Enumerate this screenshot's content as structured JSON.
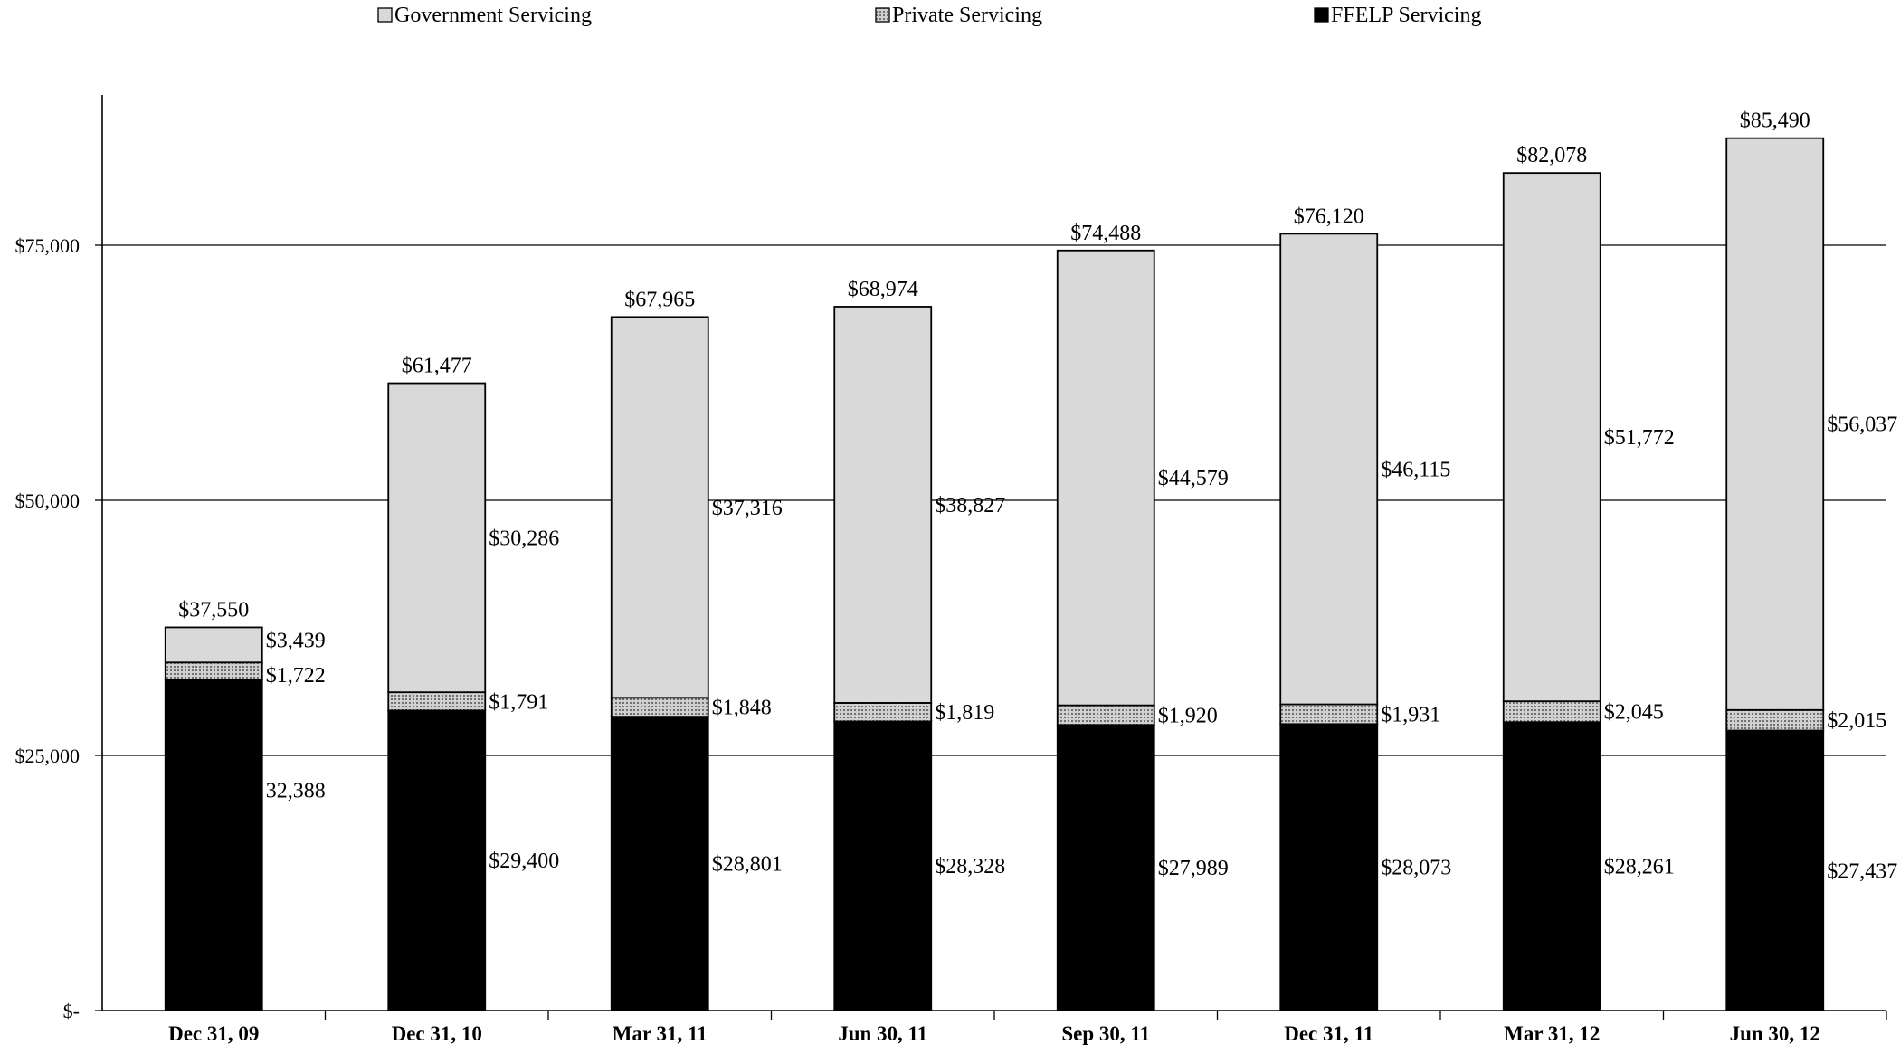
{
  "chart_data": {
    "type": "bar",
    "stacked": true,
    "title": "",
    "xlabel": "",
    "ylabel": "",
    "ylim": [
      0,
      85490
    ],
    "y_ticks": [
      {
        "value": 0,
        "label": "$-"
      },
      {
        "value": 25000,
        "label": "$25,000"
      },
      {
        "value": 50000,
        "label": "$50,000"
      },
      {
        "value": 75000,
        "label": "$75,000"
      }
    ],
    "grid": true,
    "legend_position": "top",
    "categories": [
      "Dec 31, 09",
      "Dec 31, 10",
      "Mar 31, 11",
      "Jun 30, 11",
      "Sep 30, 11",
      "Dec 31, 11",
      "Mar 31, 12",
      "Jun 30, 12"
    ],
    "series": [
      {
        "name": "FFELP Servicing",
        "pattern": "solid",
        "color": "#000000",
        "values": [
          32388,
          29400,
          28801,
          28328,
          27989,
          28073,
          28261,
          27437
        ],
        "labels": [
          "32,388",
          "$29,400",
          "$28,801",
          "$28,328",
          "$27,989",
          "$28,073",
          "$28,261",
          "$27,437"
        ]
      },
      {
        "name": "Private Servicing",
        "pattern": "dotted",
        "color": "#c8c8c8",
        "values": [
          1722,
          1791,
          1848,
          1819,
          1920,
          1931,
          2045,
          2015
        ],
        "labels": [
          "$1,722",
          "$1,791",
          "$1,848",
          "$1,819",
          "$1,920",
          "$1,931",
          "$2,045",
          "$2,015"
        ]
      },
      {
        "name": "Government Servicing",
        "pattern": "solid",
        "color": "#d9d9d9",
        "values": [
          3439,
          30286,
          37316,
          38827,
          44579,
          46115,
          51772,
          56037
        ],
        "labels": [
          "$3,439",
          "$30,286",
          "$37,316",
          "$38,827",
          "$44,579",
          "$46,115",
          "$51,772",
          "$56,037"
        ]
      }
    ],
    "totals": [
      37550,
      61477,
      67965,
      68974,
      74488,
      76120,
      82078,
      85490
    ],
    "total_labels": [
      "$37,550",
      "$61,477",
      "$67,965",
      "$68,974",
      "$74,488",
      "$76,120",
      "$82,078",
      "$85,490"
    ]
  }
}
